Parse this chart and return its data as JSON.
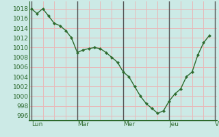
{
  "x_labels": [
    "Lun",
    "Mar",
    "Mer",
    "Jeu",
    "V"
  ],
  "day_x_positions": [
    0,
    8,
    16,
    24,
    32
  ],
  "y_values": [
    1018,
    1017,
    1018,
    1016.5,
    1015,
    1014.5,
    1013.5,
    1012,
    1009,
    1009.5,
    1009.8,
    1010,
    1009.8,
    1009,
    1008,
    1007,
    1005,
    1004,
    1002,
    1000,
    998.5,
    997.5,
    996.5,
    997,
    999,
    1000.5,
    1001.5,
    1004,
    1005,
    1008.5,
    1011,
    1012.5
  ],
  "background_color": "#cceae6",
  "grid_color": "#e8b8b8",
  "day_line_color": "#888888",
  "line_color": "#2d6a2d",
  "marker_color": "#2d6a2d",
  "ylim": [
    995,
    1019.5
  ],
  "xlim": [
    -0.3,
    32.3
  ],
  "yticks": [
    996,
    998,
    1000,
    1002,
    1004,
    1006,
    1008,
    1010,
    1012,
    1014,
    1016,
    1018
  ],
  "axis_label_color": "#2d6a2d",
  "axis_label_fontsize": 6.5,
  "bottom_spine_color": "#2d6a2d",
  "left_spine_color": "#2d6a2d"
}
